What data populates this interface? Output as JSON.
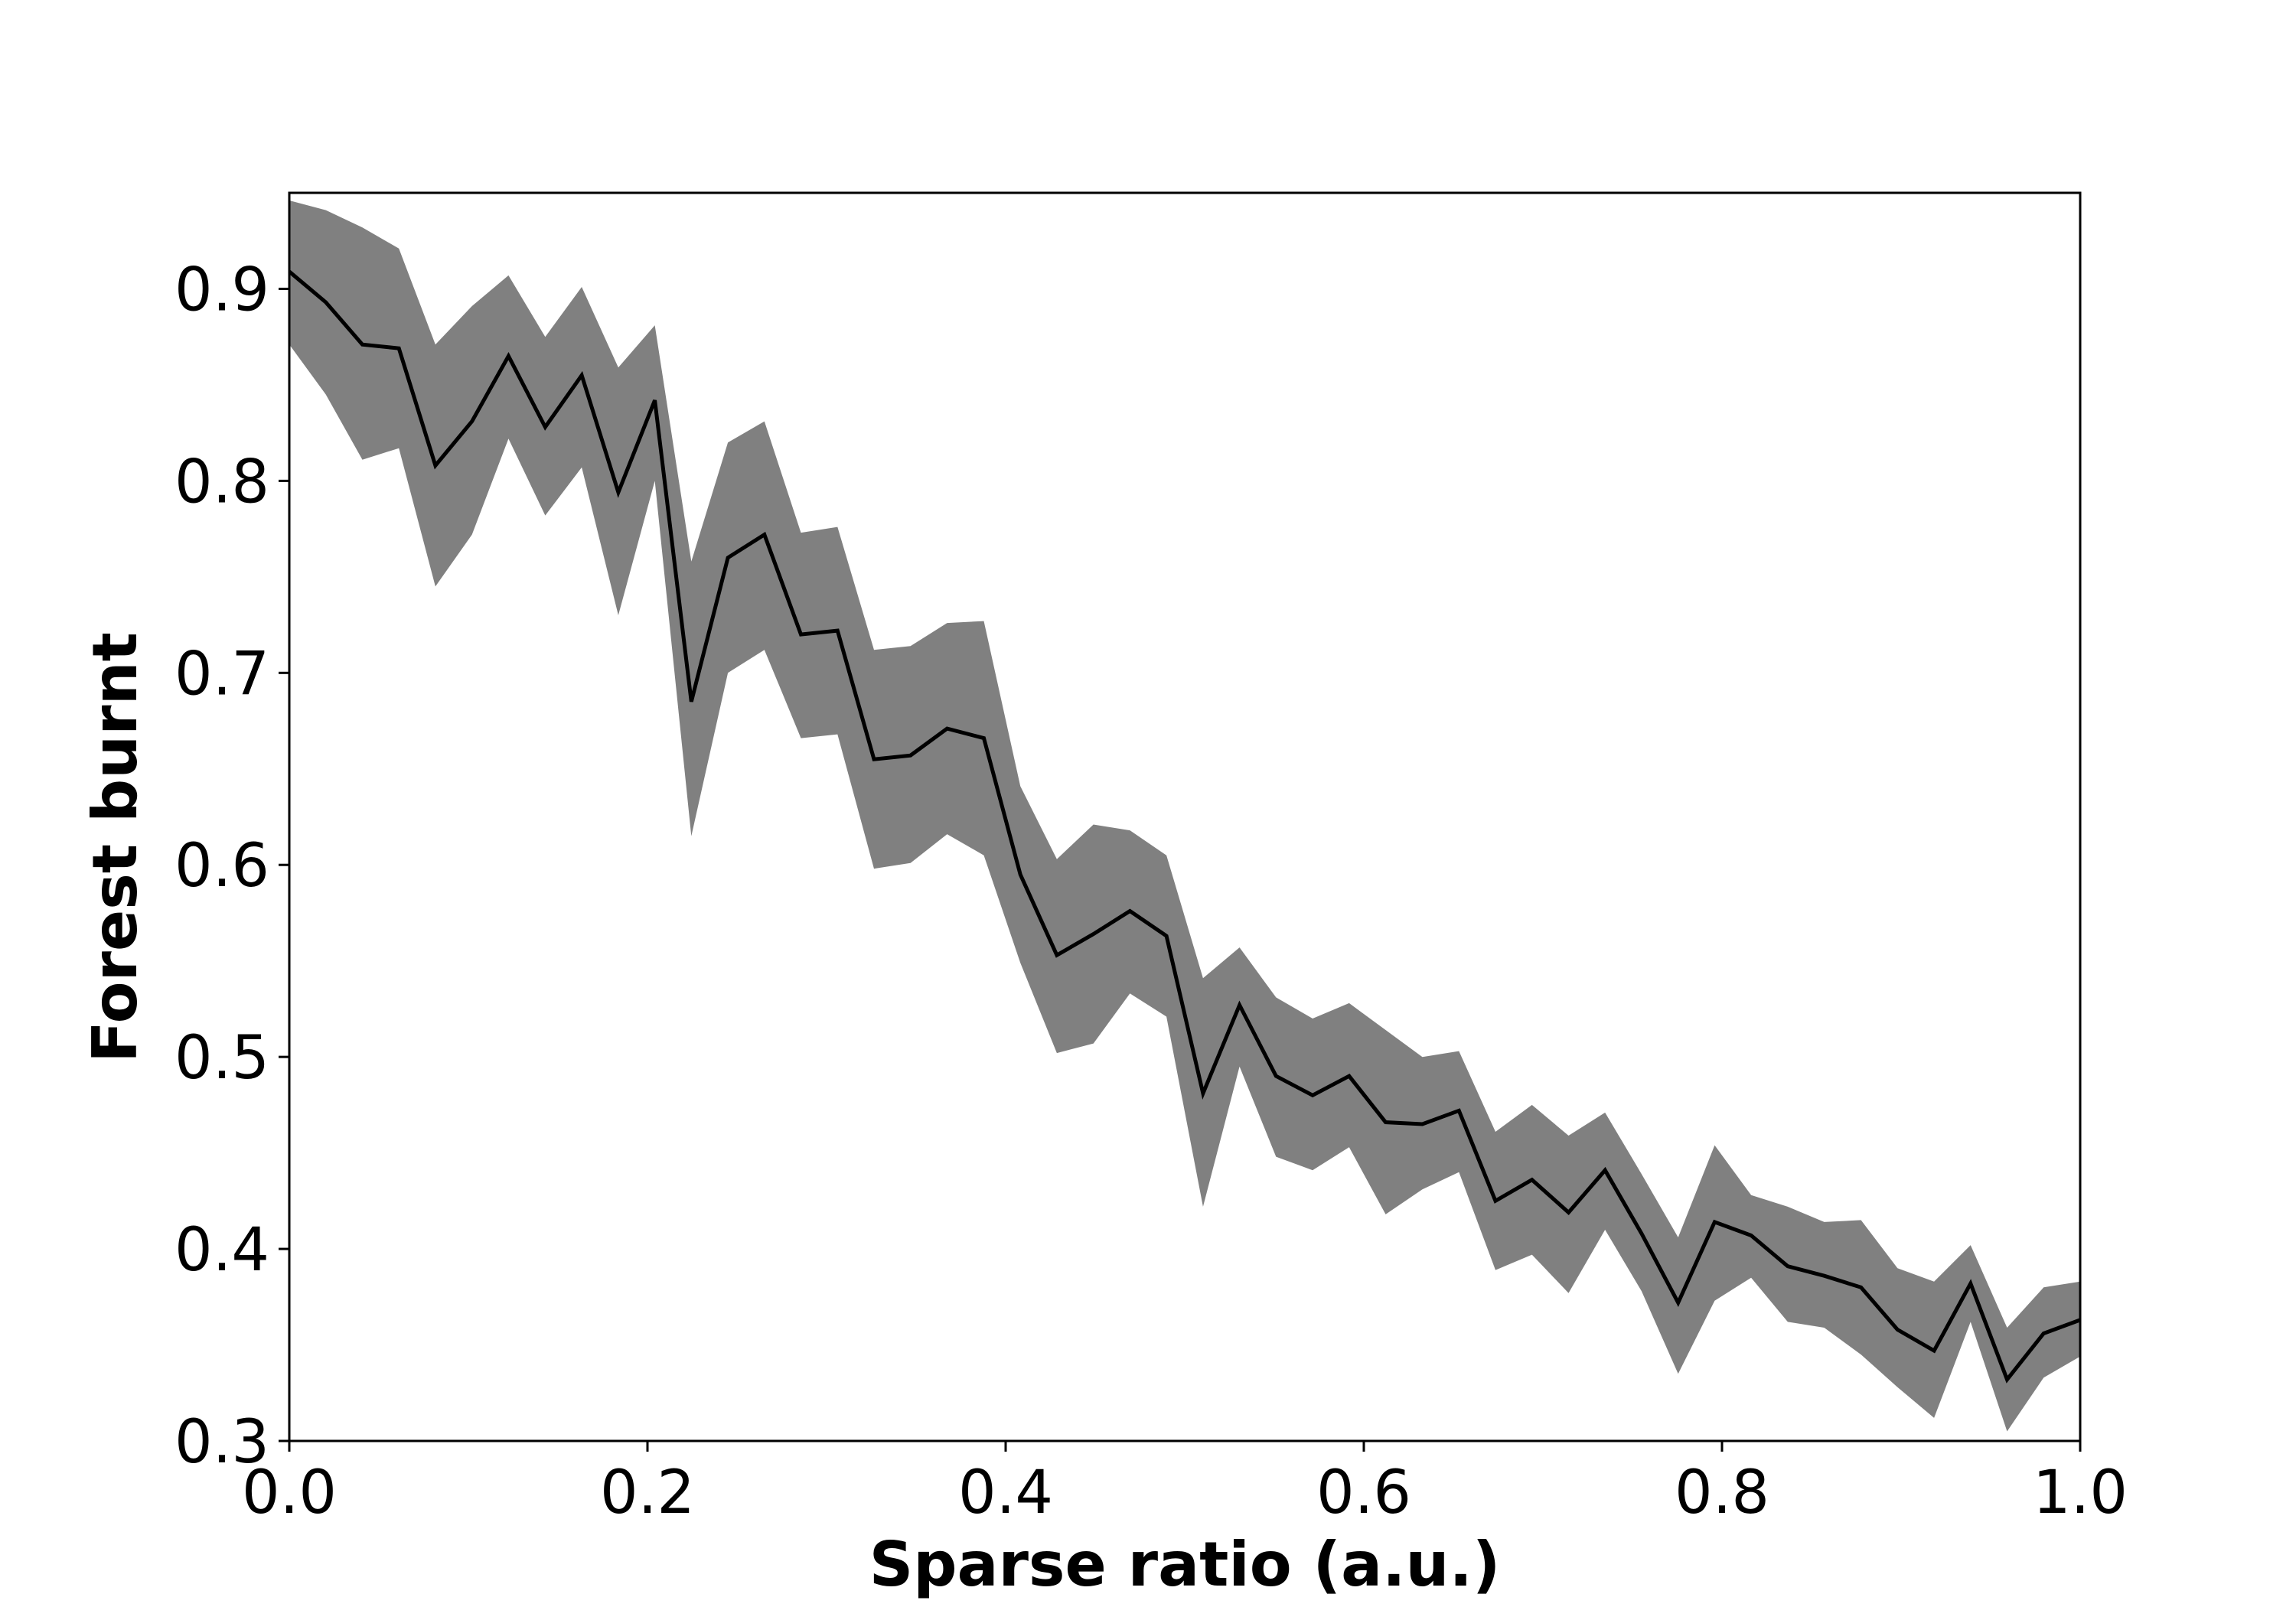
{
  "chart_data": {
    "type": "line",
    "title": "",
    "xlabel": "Sparse ratio (a.u.)",
    "ylabel": "Forest burnt",
    "xlim": [
      0.0,
      1.0
    ],
    "ylim": [
      0.3,
      0.95
    ],
    "xticks": [
      0.0,
      0.2,
      0.4,
      0.6,
      0.8,
      1.0
    ],
    "xtick_labels": [
      "0.0",
      "0.2",
      "0.4",
      "0.6",
      "0.8",
      "1.0"
    ],
    "yticks": [
      0.3,
      0.4,
      0.5,
      0.6,
      0.7,
      0.8,
      0.9
    ],
    "ytick_labels": [
      "0.3",
      "0.4",
      "0.5",
      "0.6",
      "0.7",
      "0.8",
      "0.9"
    ],
    "grid": false,
    "legend": "none",
    "colors": {
      "line": "#000000",
      "band": "#808080"
    },
    "x": [
      0.0,
      0.0204,
      0.0408,
      0.0612,
      0.0816,
      0.102,
      0.1224,
      0.1429,
      0.1633,
      0.1837,
      0.2041,
      0.2245,
      0.2449,
      0.2653,
      0.2857,
      0.3061,
      0.3265,
      0.3469,
      0.3673,
      0.3878,
      0.4082,
      0.4286,
      0.449,
      0.4694,
      0.4898,
      0.5102,
      0.5306,
      0.551,
      0.5714,
      0.5918,
      0.6122,
      0.6327,
      0.6531,
      0.6735,
      0.6939,
      0.7143,
      0.7347,
      0.7551,
      0.7755,
      0.7959,
      0.8163,
      0.8367,
      0.8571,
      0.8776,
      0.898,
      0.9184,
      0.9388,
      0.9592,
      0.9796,
      1.0
    ],
    "series": [
      {
        "values": [
          0.909,
          0.893,
          0.871,
          0.869,
          0.808,
          0.831,
          0.865,
          0.828,
          0.855,
          0.794,
          0.842,
          0.685,
          0.76,
          0.772,
          0.72,
          0.722,
          0.655,
          0.657,
          0.671,
          0.666,
          0.595,
          0.553,
          0.564,
          0.576,
          0.563,
          0.481,
          0.527,
          0.49,
          0.48,
          0.49,
          0.466,
          0.465,
          0.472,
          0.425,
          0.436,
          0.419,
          0.441,
          0.408,
          0.372,
          0.414,
          0.407,
          0.391,
          0.386,
          0.38,
          0.358,
          0.347,
          0.382,
          0.332,
          0.356,
          0.363
        ],
        "lower": [
          0.871,
          0.845,
          0.811,
          0.817,
          0.745,
          0.772,
          0.822,
          0.782,
          0.807,
          0.73,
          0.8,
          0.615,
          0.7,
          0.712,
          0.666,
          0.668,
          0.598,
          0.601,
          0.616,
          0.605,
          0.549,
          0.502,
          0.507,
          0.533,
          0.521,
          0.422,
          0.495,
          0.448,
          0.441,
          0.453,
          0.418,
          0.431,
          0.44,
          0.389,
          0.397,
          0.377,
          0.41,
          0.378,
          0.335,
          0.373,
          0.385,
          0.362,
          0.359,
          0.345,
          0.328,
          0.312,
          0.362,
          0.305,
          0.333,
          0.344
        ],
        "upper": [
          0.946,
          0.941,
          0.932,
          0.921,
          0.871,
          0.891,
          0.907,
          0.875,
          0.901,
          0.859,
          0.881,
          0.758,
          0.82,
          0.831,
          0.773,
          0.776,
          0.712,
          0.714,
          0.726,
          0.727,
          0.641,
          0.603,
          0.621,
          0.618,
          0.605,
          0.541,
          0.557,
          0.531,
          0.52,
          0.528,
          0.514,
          0.5,
          0.503,
          0.461,
          0.475,
          0.459,
          0.471,
          0.439,
          0.406,
          0.454,
          0.428,
          0.422,
          0.414,
          0.415,
          0.39,
          0.383,
          0.402,
          0.359,
          0.38,
          0.383
        ]
      }
    ]
  }
}
